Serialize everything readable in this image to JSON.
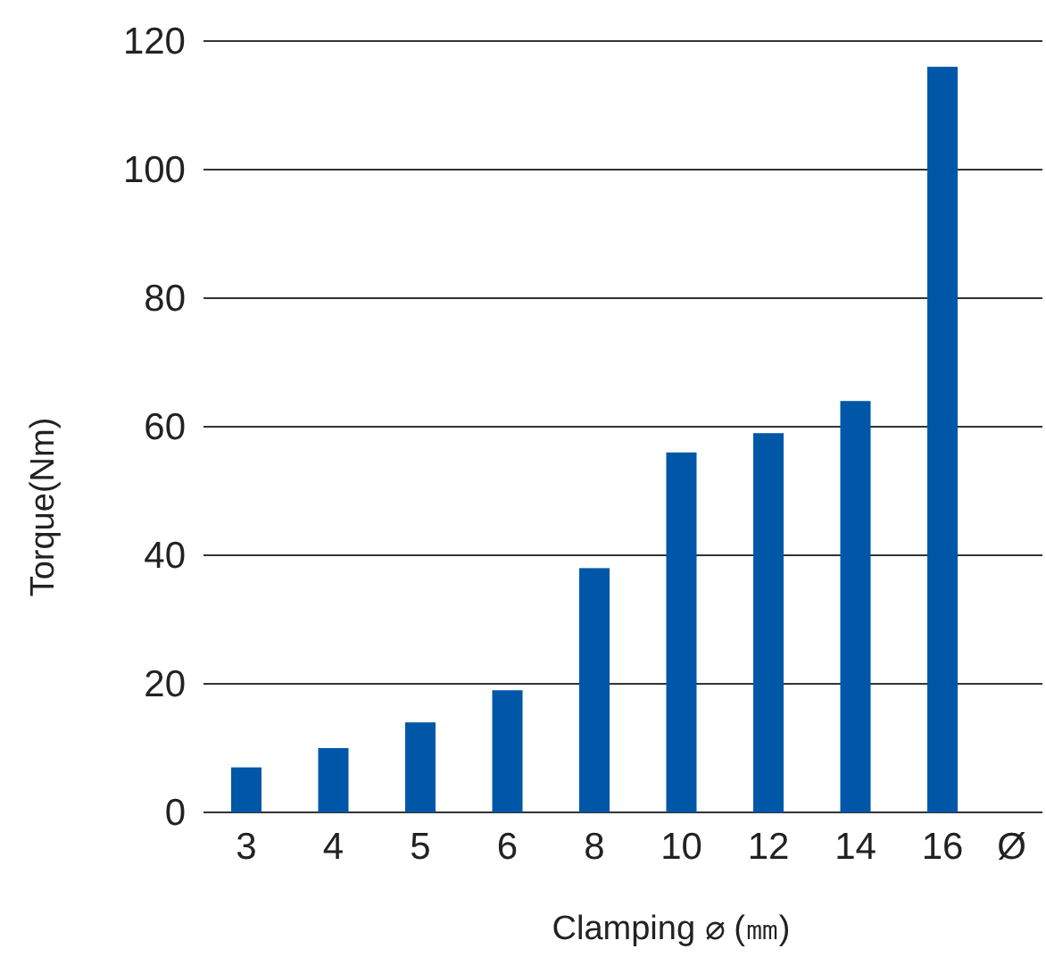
{
  "chart_data": {
    "type": "bar",
    "xlabel": "Clamping ⌀ (㎜)",
    "ylabel": "Torque(Nm)",
    "categories": [
      "3",
      "4",
      "5",
      "6",
      "8",
      "10",
      "12",
      "14",
      "16"
    ],
    "values": [
      7,
      10,
      14,
      19,
      38,
      56,
      59,
      64,
      116
    ],
    "color": "#0057a8",
    "ylim": [
      0,
      120
    ],
    "yticks": [
      0,
      20,
      40,
      60,
      80,
      100,
      120
    ],
    "grid": "y",
    "annotations": [
      "Ø"
    ]
  }
}
